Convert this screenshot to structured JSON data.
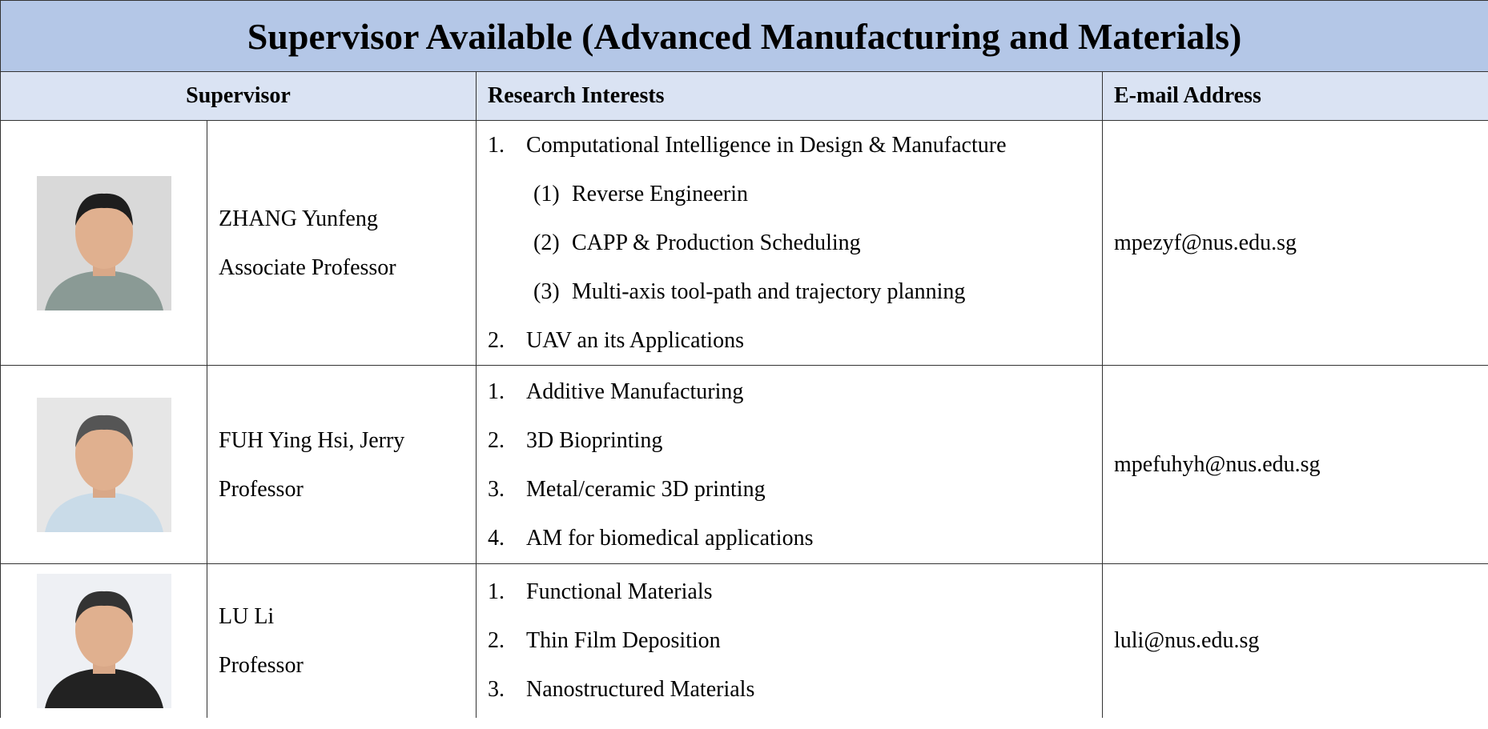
{
  "header": {
    "title": "Supervisor Available (Advanced Manufacturing and Materials)"
  },
  "table": {
    "columns": [
      "Supervisor",
      "Research Interests",
      "E-mail Address"
    ],
    "rows": [
      {
        "name": "ZHANG Yunfeng",
        "position": "Associate Professor",
        "email": "mpezyf@nus.edu.sg",
        "interests": [
          {
            "marker": "1.",
            "text": "Computational Intelligence in Design & Manufacture",
            "subitems": [
              {
                "marker": "(1)",
                "text": "Reverse Engineerin"
              },
              {
                "marker": "(2)",
                "text": "CAPP & Production Scheduling"
              },
              {
                "marker": "(3)",
                "text": "Multi-axis tool-path and trajectory planning"
              }
            ]
          },
          {
            "marker": "2.",
            "text": "UAV an its Applications"
          }
        ]
      },
      {
        "name": "FUH Ying Hsi, Jerry",
        "position": "Professor",
        "email": "mpefuhyh@nus.edu.sg",
        "interests": [
          {
            "marker": "1.",
            "text": "Additive Manufacturing"
          },
          {
            "marker": "2.",
            "text": "3D Bioprinting"
          },
          {
            "marker": "3.",
            "text": "Metal/ceramic 3D printing"
          },
          {
            "marker": "4.",
            "text": "AM for biomedical applications"
          }
        ]
      },
      {
        "name": "LU Li",
        "position": "Professor",
        "email": "luli@nus.edu.sg",
        "interests": [
          {
            "marker": "1.",
            "text": "Functional Materials"
          },
          {
            "marker": "2.",
            "text": "Thin Film Deposition"
          },
          {
            "marker": "3.",
            "text": "Nanostructured Materials"
          }
        ]
      }
    ]
  }
}
